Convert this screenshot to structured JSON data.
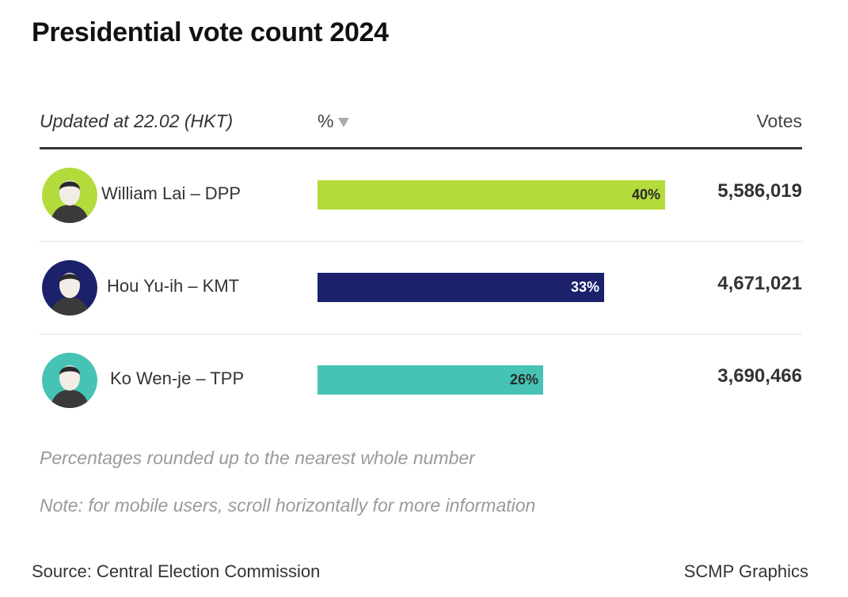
{
  "title": "Presidential vote count 2024",
  "header": {
    "updated": "Updated at 22.02 (HKT)",
    "percent": "%",
    "votes": "Votes"
  },
  "chart_data": {
    "type": "bar",
    "title": "Presidential vote count 2024",
    "categories": [
      "William Lai – DPP",
      "Hou Yu-ih – KMT",
      "Ko Wen-je – TPP"
    ],
    "values": [
      40,
      33,
      26
    ],
    "xlim": [
      0,
      50
    ],
    "rows": [
      {
        "name": "William Lai – DPP",
        "pct": 40,
        "pct_label": "40%",
        "votes": "5,586,019",
        "color": "#b3db3b",
        "label_color": "#2b2b2b",
        "avatar_icon": "portrait-icon",
        "avatar_bg": "#b3db3b"
      },
      {
        "name": "Hou Yu-ih – KMT",
        "pct": 33,
        "pct_label": "33%",
        "votes": "4,671,021",
        "color": "#1b216b",
        "label_color": "#ffffff",
        "avatar_icon": "portrait-icon",
        "avatar_bg": "#1b216b"
      },
      {
        "name": "Ko Wen-je – TPP",
        "pct": 26,
        "pct_label": "26%",
        "votes": "3,690,466",
        "color": "#46c3b5",
        "label_color": "#2b2b2b",
        "avatar_icon": "portrait-icon",
        "avatar_bg": "#46c3b5"
      }
    ]
  },
  "notes": {
    "rounding": "Percentages rounded up to the nearest whole number",
    "mobile": "Note: for mobile users, scroll horizontally for more information"
  },
  "footer": {
    "source": "Source: Central Election Commission",
    "credit": "SCMP Graphics"
  }
}
